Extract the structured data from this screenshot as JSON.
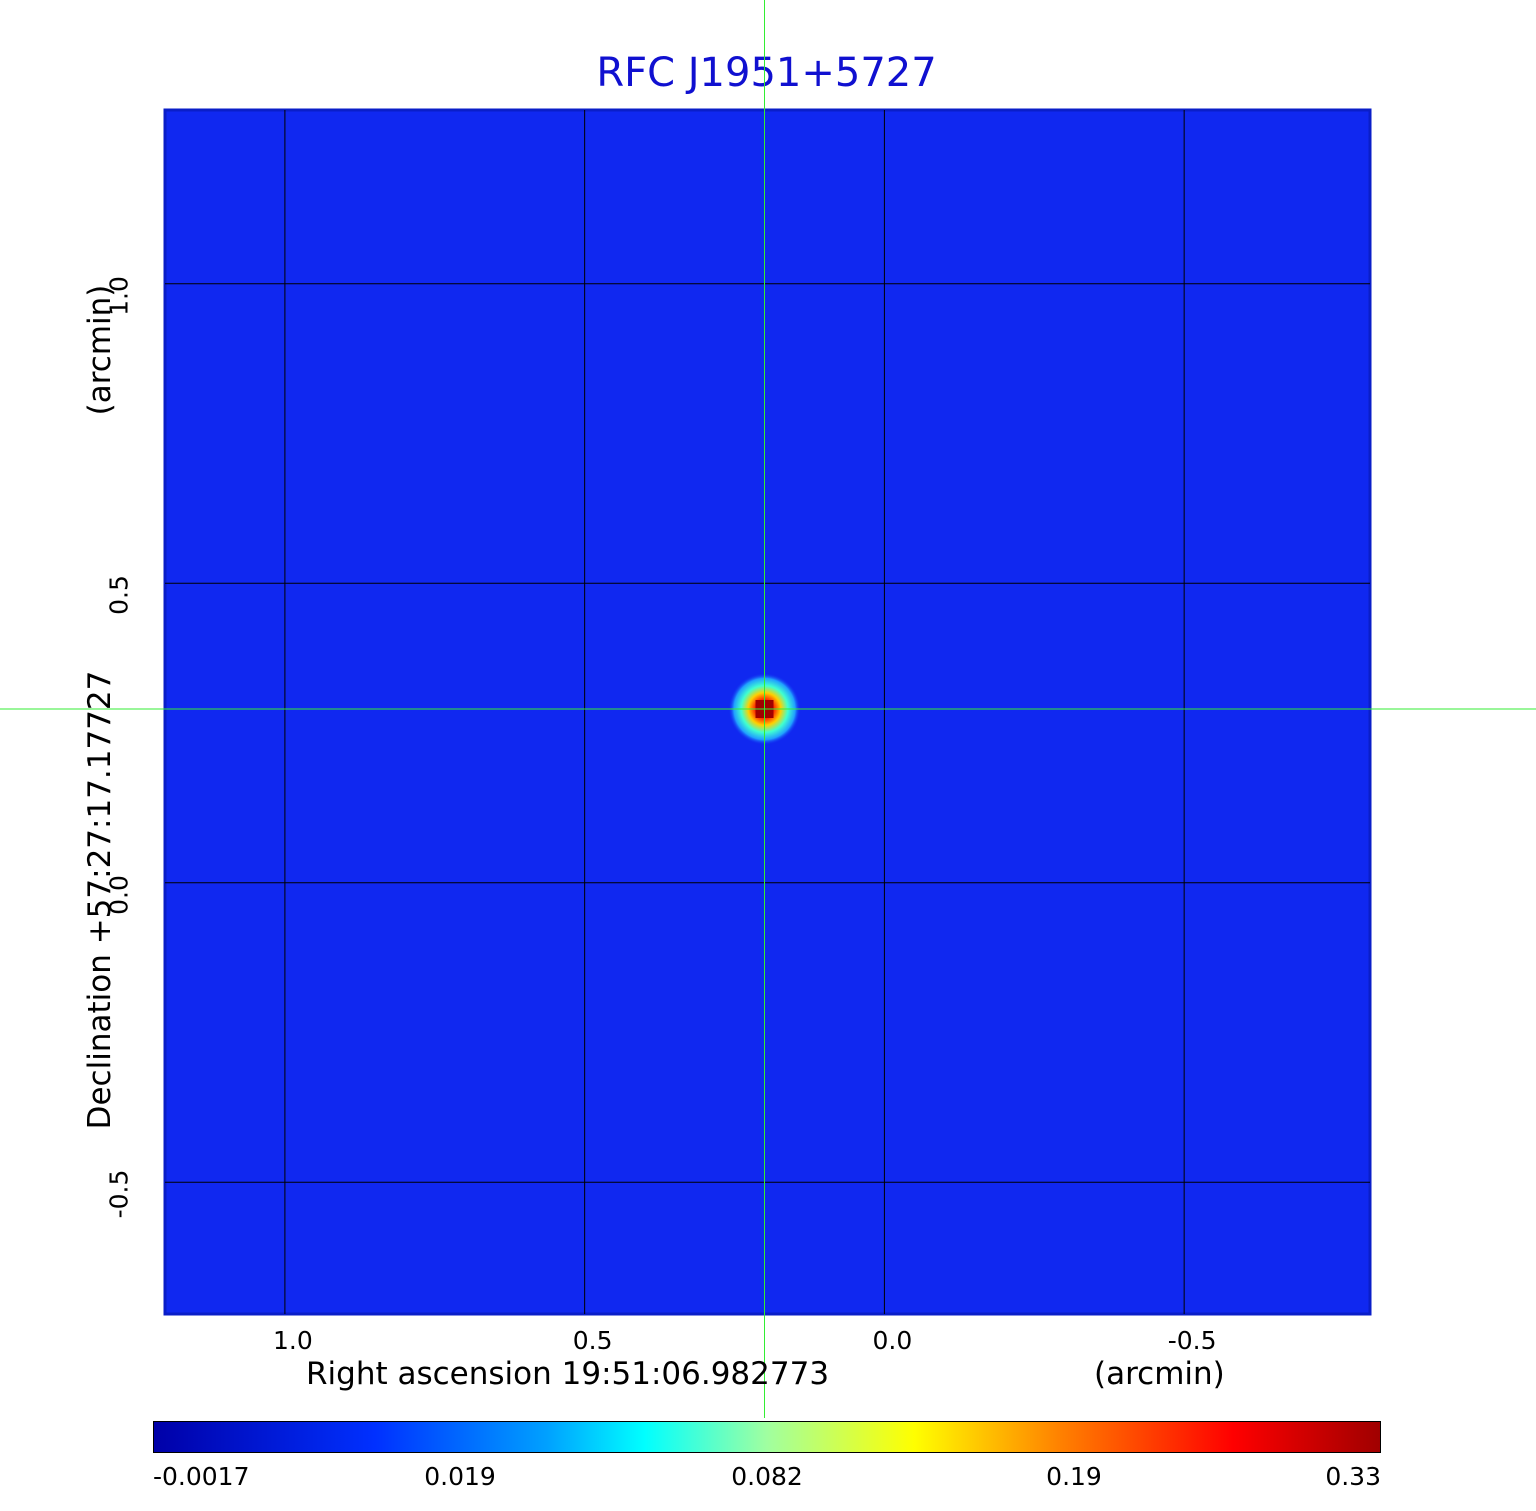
{
  "chart_data": {
    "type": "heatmap",
    "title": "RFC J1951+5727",
    "xlabel": "Right ascension  19:51:06.982773",
    "xunit": "(arcmin)",
    "ylabel": "Declination  +57:27:17.17727",
    "yunit": "(arcmin)",
    "x_ticks": [
      1.0,
      0.5,
      0.0,
      -0.5
    ],
    "x_tick_labels": [
      "1.0",
      "0.5",
      "0.0",
      "-0.5"
    ],
    "y_ticks": [
      1.0,
      0.5,
      0.0,
      -0.5
    ],
    "y_tick_labels": [
      "1.0",
      "0.5",
      "0.0",
      "-0.5"
    ],
    "xlim": [
      1.2,
      -0.81
    ],
    "ylim": [
      -0.72,
      1.29
    ],
    "grid": true,
    "crosshair": {
      "x": 0.2,
      "y": 0.29
    },
    "peak_source": {
      "x": 0.2,
      "y": 0.29,
      "value": 0.33
    },
    "colorbar": {
      "colormap": "jet",
      "tick_labels": [
        "-0.0017",
        "0.019",
        "0.082",
        "0.19",
        "0.33"
      ],
      "min": -0.0017,
      "max": 0.33
    }
  }
}
